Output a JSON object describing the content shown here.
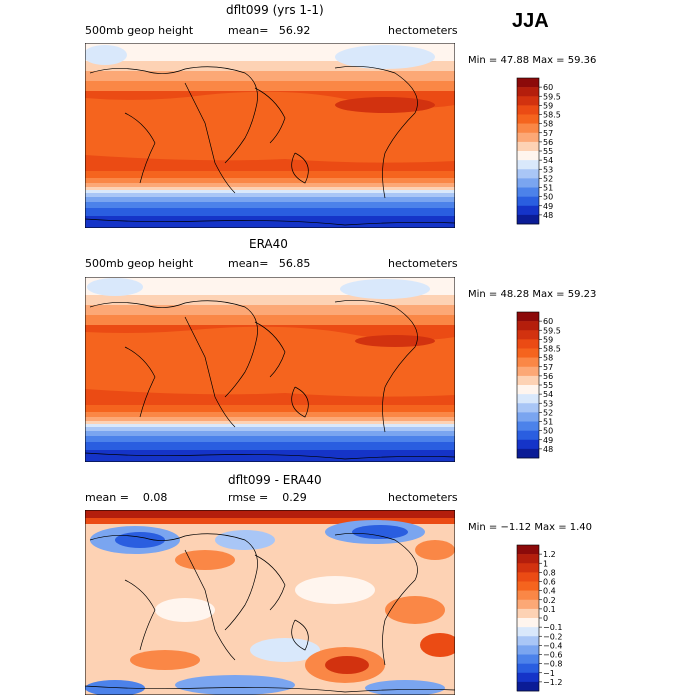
{
  "season": "JJA",
  "panels": [
    {
      "title": "dflt099 (yrs 1-1)",
      "left_label": "500mb geop height",
      "mean_label": "mean=",
      "mean_value": "56.92",
      "units": "hectometers",
      "min_label": "Min =",
      "min_value": "47.88",
      "max_label": "Max =",
      "max_value": "59.36"
    },
    {
      "title": "ERA40",
      "left_label": "500mb geop height",
      "mean_label": "mean=",
      "mean_value": "56.85",
      "units": "hectometers",
      "min_label": "Min =",
      "min_value": "48.28",
      "max_label": "Max =",
      "max_value": "59.23"
    },
    {
      "title": "dflt099 - ERA40",
      "left_label": "mean =",
      "left_value": "0.08",
      "rmse_label": "rmse =",
      "rmse_value": "0.29",
      "units": "hectometers",
      "min_label": "Min =",
      "min_value": "−1.12",
      "max_label": "Max =",
      "max_value": "1.40"
    }
  ],
  "chart_data": [
    {
      "type": "heatmap",
      "title": "dflt099 (yrs 1-1)",
      "variable": "500mb geop height",
      "units": "hectometers",
      "mean": 56.92,
      "min": 47.88,
      "max": 59.36,
      "colorbar_levels": [
        "60",
        "59.5",
        "59",
        "58.5",
        "58",
        "57",
        "56",
        "55",
        "54",
        "53",
        "52",
        "51",
        "50",
        "49",
        "48"
      ],
      "colorbar_colors": [
        "#8c0a0a",
        "#b41e0c",
        "#d2320f",
        "#eb4b14",
        "#f5641e",
        "#fa8746",
        "#fca876",
        "#fdd2b4",
        "#fff5ee",
        "#d9e8fb",
        "#a9c6f6",
        "#7aa5f0",
        "#4c82ea",
        "#2a5ee0",
        "#1534c8",
        "#0b1c96"
      ]
    },
    {
      "type": "heatmap",
      "title": "ERA40",
      "variable": "500mb geop height",
      "units": "hectometers",
      "mean": 56.85,
      "min": 48.28,
      "max": 59.23,
      "colorbar_levels": [
        "60",
        "59.5",
        "59",
        "58.5",
        "58",
        "57",
        "56",
        "55",
        "54",
        "53",
        "52",
        "51",
        "50",
        "49",
        "48"
      ],
      "colorbar_colors": [
        "#8c0a0a",
        "#b41e0c",
        "#d2320f",
        "#eb4b14",
        "#f5641e",
        "#fa8746",
        "#fca876",
        "#fdd2b4",
        "#fff5ee",
        "#d9e8fb",
        "#a9c6f6",
        "#7aa5f0",
        "#4c82ea",
        "#2a5ee0",
        "#1534c8",
        "#0b1c96"
      ]
    },
    {
      "type": "heatmap",
      "title": "dflt099 - ERA40",
      "units": "hectometers",
      "mean": 0.08,
      "rmse": 0.29,
      "min": -1.12,
      "max": 1.4,
      "colorbar_levels": [
        "1.2",
        "1",
        "0.8",
        "0.6",
        "0.4",
        "0.2",
        "0.1",
        "0",
        "−0.1",
        "−0.2",
        "−0.4",
        "−0.6",
        "−0.8",
        "−1",
        "−1.2"
      ],
      "colorbar_colors": [
        "#8c0a0a",
        "#b41e0c",
        "#d2320f",
        "#eb4b14",
        "#f5641e",
        "#fa8746",
        "#fca876",
        "#fdd2b4",
        "#fff5ee",
        "#d9e8fb",
        "#a9c6f6",
        "#7aa5f0",
        "#4c82ea",
        "#2a5ee0",
        "#1534c8",
        "#0b1c96"
      ]
    }
  ]
}
